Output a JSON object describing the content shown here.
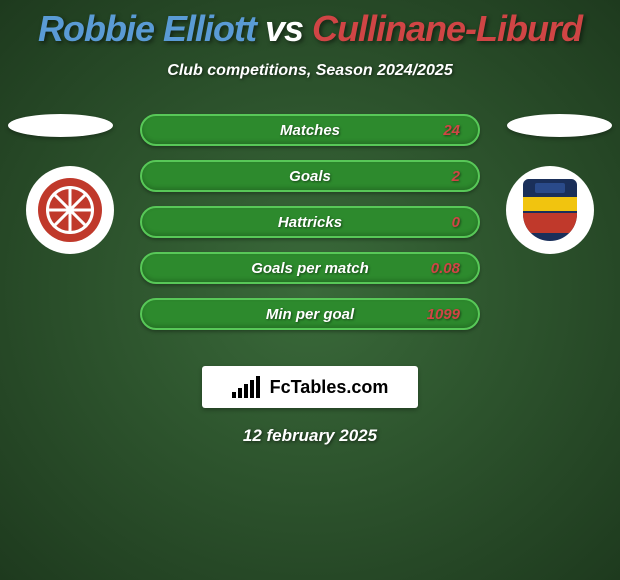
{
  "title": {
    "player_a": "Robbie Elliott",
    "vs": "vs",
    "player_b": "Cullinane-Liburd"
  },
  "subtitle": "Club competitions, Season 2024/2025",
  "colors": {
    "player_a": "#5a9bd5",
    "player_b": "#d04545",
    "background_inner": "#3a6a3a",
    "background_outer": "#1e3a1e",
    "pill_bg": "#2d8a2d",
    "pill_border": "#58c858",
    "text": "#ffffff"
  },
  "badges": {
    "left": {
      "name": "Hartlepool United FC",
      "primary": "#c0392b",
      "secondary": "#ffffff"
    },
    "right": {
      "name": "Tamworth Football Club",
      "primary": "#1a2f5a",
      "secondary": "#f1c40f",
      "tertiary": "#c0392b"
    }
  },
  "stats": [
    {
      "label": "Matches",
      "value_b": "24"
    },
    {
      "label": "Goals",
      "value_b": "2"
    },
    {
      "label": "Hattricks",
      "value_b": "0"
    },
    {
      "label": "Goals per match",
      "value_b": "0.08"
    },
    {
      "label": "Min per goal",
      "value_b": "1099"
    }
  ],
  "brand": "FcTables.com",
  "date": "12 february 2025"
}
